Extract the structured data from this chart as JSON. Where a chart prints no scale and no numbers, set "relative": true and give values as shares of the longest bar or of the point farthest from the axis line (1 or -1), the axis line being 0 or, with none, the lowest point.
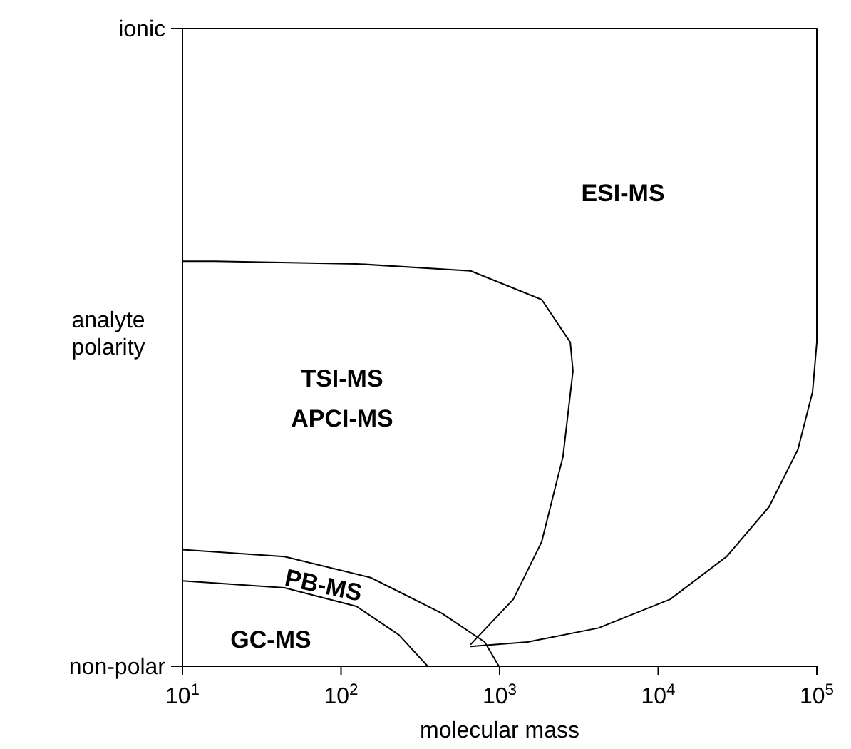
{
  "chart_data": {
    "type": "line",
    "xlabel": "molecular mass",
    "ylabel": "analyte polarity",
    "log": "x",
    "relative": true,
    "marker": "none",
    "line_style": "solid",
    "xlim": [
      10,
      100000
    ],
    "xticks": [
      {
        "value": 10,
        "label": "10$^{1}$"
      },
      {
        "value": 100,
        "label": "10$^{2}$"
      },
      {
        "value": 1000,
        "label": "10$^{3}$"
      },
      {
        "value": 10000,
        "label": "10$^{4}$"
      },
      {
        "value": 100000,
        "label": "10$^{5}$"
      }
    ],
    "series": [
      {
        "color": "#000000",
        "x": [
          10,
          100000,
          100000,
          94000,
          76000,
          50000,
          27000,
          11900,
          4200,
          1500,
          655
        ],
        "values": [
          1,
          1,
          0.508,
          0.43,
          0.34,
          0.25,
          0.172,
          0.105,
          0.06,
          0.038,
          0.031
        ]
      },
      {
        "color": "#000000",
        "x": [
          10,
          16,
          125,
          655,
          1840,
          2790,
          2900,
          2510,
          1840,
          1220,
          655
        ],
        "values": [
          0.635,
          0.635,
          0.631,
          0.62,
          0.575,
          0.508,
          0.463,
          0.329,
          0.195,
          0.105,
          0.034
        ]
      },
      {
        "color": "#000000",
        "x": [
          10,
          44,
          154,
          433,
          805,
          990
        ],
        "values": [
          0.183,
          0.172,
          0.139,
          0.083,
          0.038,
          0
        ]
      },
      {
        "color": "#000000",
        "x": [
          10,
          44,
          125,
          232,
          352
        ],
        "values": [
          0.134,
          0.123,
          0.094,
          0.049,
          0
        ]
      }
    ],
    "annotations": [
      "ionic",
      "non-polar",
      "ESI-MS",
      "TSI-MS",
      "APCI-MS",
      "PB-MS",
      "GC-MS"
    ]
  }
}
